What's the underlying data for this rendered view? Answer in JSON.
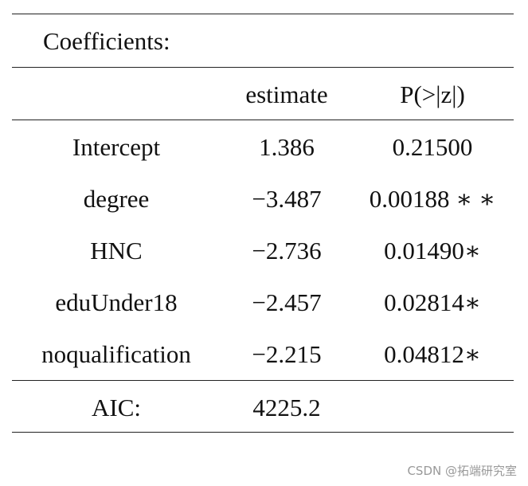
{
  "table": {
    "title": "Coefficients:",
    "header": [
      "estimate",
      "P(>|z|)"
    ],
    "rows": [
      [
        "Intercept",
        "1.386",
        "0.21500"
      ],
      [
        "degree",
        "−3.487",
        "0.00188 ∗ ∗"
      ],
      [
        "HNC",
        "−2.736",
        "0.01490∗"
      ],
      [
        "eduUnder18",
        "−2.457",
        "0.02814∗"
      ],
      [
        "noqualification",
        "−2.215",
        "0.04812∗"
      ]
    ],
    "footer": [
      "AIC:",
      "4225.2"
    ]
  },
  "watermark": "CSDN @拓端研究室"
}
